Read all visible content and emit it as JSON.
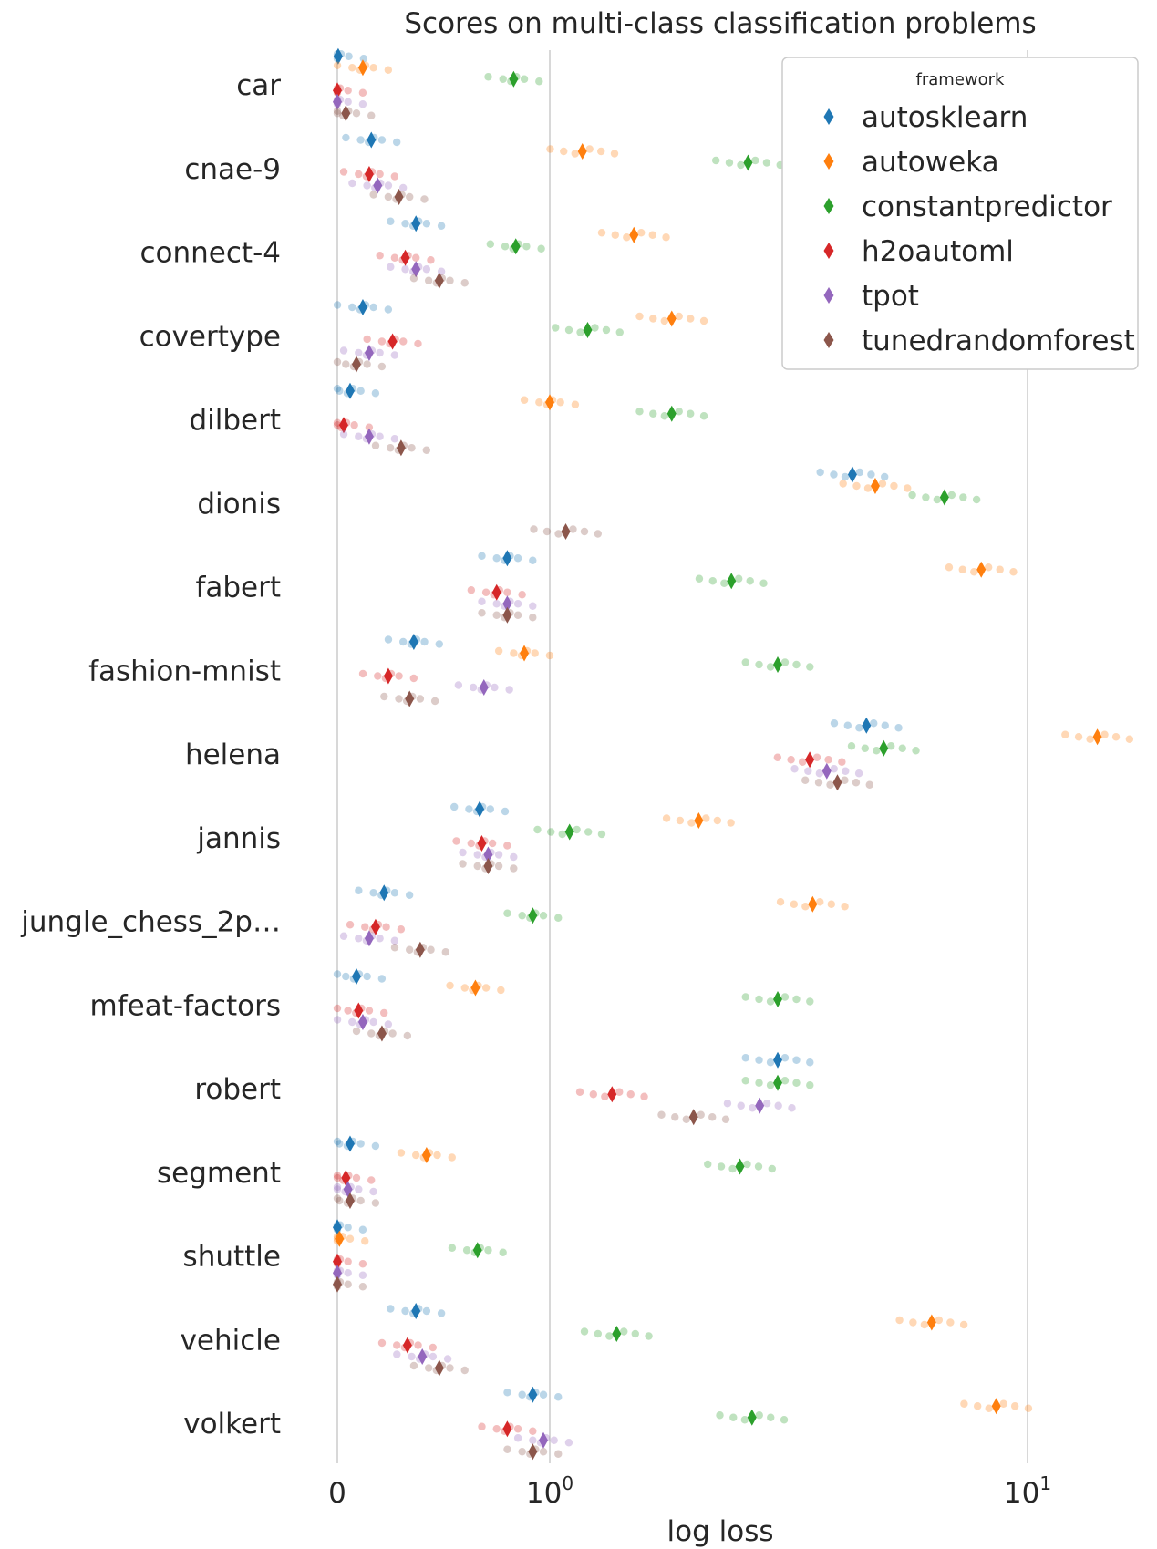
{
  "chart_data": {
    "type": "scatter",
    "title": "Scores on multi-class classification problems",
    "xlabel": "log loss",
    "ylabel": "",
    "x_scale": "symlog",
    "x_ticks": [
      {
        "value": 0,
        "label": "0",
        "sup": ""
      },
      {
        "value": 1,
        "label": "10",
        "sup": "0"
      },
      {
        "value": 10,
        "label": "10",
        "sup": "1"
      }
    ],
    "grid": "vertical",
    "legend": {
      "title": "framework",
      "position": "top-right"
    },
    "categories": [
      "car",
      "cnae-9",
      "connect-4",
      "covertype",
      "dilbert",
      "dionis",
      "fabert",
      "fashion-mnist",
      "helena",
      "jannis",
      "jungle_chess_2p…",
      "mfeat-factors",
      "robert",
      "segment",
      "shuttle",
      "vehicle",
      "volkert"
    ],
    "series": [
      {
        "name": "autosklearn",
        "color": "#1f77b4",
        "values": [
          0.004,
          0.16,
          0.37,
          0.12,
          0.06,
          4.3,
          0.8,
          0.36,
          4.6,
          0.67,
          0.22,
          0.09,
          3.0,
          0.06,
          0.0,
          0.37,
          0.92
        ]
      },
      {
        "name": "autoweka",
        "color": "#ff7f0e",
        "values": [
          0.12,
          1.17,
          1.5,
          1.8,
          1.0,
          4.8,
          8.0,
          0.88,
          14.0,
          2.05,
          3.55,
          0.65,
          null,
          0.42,
          0.01,
          6.3,
          8.6
        ]
      },
      {
        "name": "constantpredictor",
        "color": "#2ca02c",
        "values": [
          0.83,
          2.6,
          0.84,
          1.2,
          1.8,
          6.7,
          2.4,
          3.0,
          5.0,
          1.1,
          0.92,
          3.0,
          3.0,
          2.5,
          0.66,
          1.38,
          2.65
        ]
      },
      {
        "name": "h2oautoml",
        "color": "#d62728",
        "values": [
          0.0,
          0.15,
          0.32,
          0.26,
          0.03,
          null,
          0.75,
          0.24,
          3.5,
          0.68,
          0.18,
          0.1,
          1.35,
          0.04,
          0.0,
          0.33,
          0.8
        ]
      },
      {
        "name": "tpot",
        "color": "#9467bd",
        "values": [
          0.0,
          0.19,
          0.37,
          0.15,
          0.15,
          null,
          0.8,
          0.69,
          3.8,
          0.71,
          0.15,
          0.12,
          2.75,
          0.05,
          0.0,
          0.4,
          0.97
        ]
      },
      {
        "name": "tunedrandomforest",
        "color": "#8c564b",
        "values": [
          0.04,
          0.29,
          0.48,
          0.09,
          0.3,
          1.08,
          0.8,
          0.34,
          4.0,
          0.71,
          0.39,
          0.21,
          2.0,
          0.06,
          0.0,
          0.48,
          0.92
        ]
      }
    ]
  }
}
